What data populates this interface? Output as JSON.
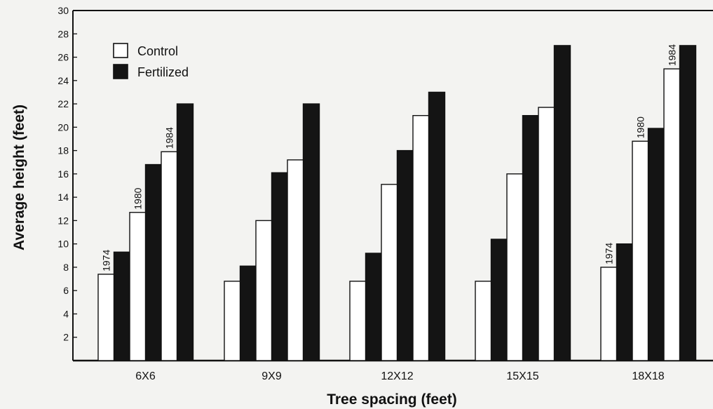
{
  "chart_data": {
    "type": "bar",
    "xlabel": "Tree spacing (feet)",
    "ylabel": "Average height (feet)",
    "ylim": [
      0,
      30
    ],
    "yticks": [
      2,
      4,
      6,
      8,
      10,
      12,
      14,
      16,
      18,
      20,
      22,
      24,
      26,
      28,
      30
    ],
    "categories": [
      "6X6",
      "9X9",
      "12X12",
      "15X15",
      "18X18"
    ],
    "years": [
      "1974",
      "1980",
      "1984"
    ],
    "year_annotations": {
      "6X6": [
        "1974",
        "1980",
        "1984"
      ],
      "18X18": [
        "1974",
        "1980",
        "1984"
      ]
    },
    "legend": {
      "placement": "top-left",
      "entries": [
        "Control",
        "Fertilized"
      ]
    },
    "series": [
      {
        "name": "Control",
        "year": "1974",
        "values": [
          7.4,
          6.8,
          6.8,
          6.8,
          8.0
        ]
      },
      {
        "name": "Fertilized",
        "year": "1974",
        "values": [
          9.3,
          8.1,
          9.2,
          10.4,
          10.0
        ]
      },
      {
        "name": "Control",
        "year": "1980",
        "values": [
          12.7,
          12.0,
          15.1,
          16.0,
          18.8
        ]
      },
      {
        "name": "Fertilized",
        "year": "1980",
        "values": [
          16.8,
          16.1,
          18.0,
          21.0,
          19.9
        ]
      },
      {
        "name": "Control",
        "year": "1984",
        "values": [
          17.9,
          17.2,
          21.0,
          21.7,
          25.0
        ]
      },
      {
        "name": "Fertilized",
        "year": "1984",
        "values": [
          22.0,
          22.0,
          23.0,
          27.0,
          27.0
        ]
      }
    ],
    "colors": {
      "Control": "#ffffff",
      "Fertilized": "#141414",
      "outline": "#111111"
    },
    "grid": false
  }
}
